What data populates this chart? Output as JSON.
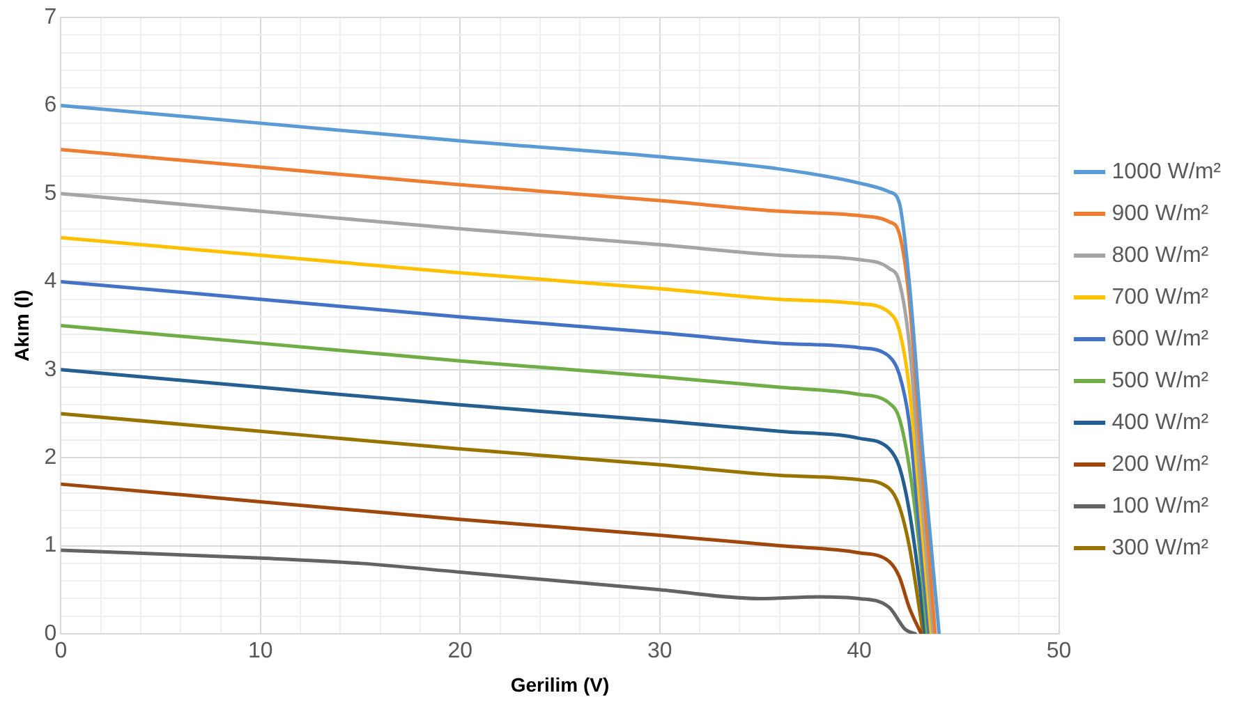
{
  "chart_data": {
    "type": "line",
    "xlabel": "Gerilim (V)",
    "ylabel": "Akım (I)",
    "xlim": [
      0,
      50
    ],
    "ylim": [
      0,
      7
    ],
    "xticks": [
      0,
      {
        "value": 2,
        "label": null
      },
      {
        "value": 4,
        "label": null
      },
      {
        "value": 6,
        "label": null
      },
      {
        "value": 8,
        "label": null
      },
      10,
      {
        "value": 12,
        "label": null
      },
      {
        "value": 14,
        "label": null
      },
      {
        "value": 16,
        "label": null
      },
      {
        "value": 18,
        "label": null
      },
      20,
      {
        "value": 22,
        "label": null
      },
      {
        "value": 24,
        "label": null
      },
      {
        "value": 26,
        "label": null
      },
      {
        "value": 28,
        "label": null
      },
      30,
      {
        "value": 32,
        "label": null
      },
      {
        "value": 34,
        "label": null
      },
      {
        "value": 36,
        "label": null
      },
      {
        "value": 38,
        "label": null
      },
      40,
      {
        "value": 42,
        "label": null
      },
      {
        "value": 44,
        "label": null
      },
      {
        "value": 46,
        "label": null
      },
      {
        "value": 48,
        "label": null
      },
      50
    ],
    "yticks": [
      0,
      {
        "value": 0.2,
        "label": null
      },
      {
        "value": 0.4,
        "label": null
      },
      {
        "value": 0.6,
        "label": null
      },
      {
        "value": 0.8,
        "label": null
      },
      1,
      {
        "value": 1.2,
        "label": null
      },
      {
        "value": 1.4,
        "label": null
      },
      {
        "value": 1.6,
        "label": null
      },
      {
        "value": 1.8,
        "label": null
      },
      2,
      {
        "value": 2.2,
        "label": null
      },
      {
        "value": 2.4,
        "label": null
      },
      {
        "value": 2.6,
        "label": null
      },
      {
        "value": 2.8,
        "label": null
      },
      3,
      {
        "value": 3.2,
        "label": null
      },
      {
        "value": 3.4,
        "label": null
      },
      {
        "value": 3.6,
        "label": null
      },
      {
        "value": 3.8,
        "label": null
      },
      4,
      {
        "value": 4.2,
        "label": null
      },
      {
        "value": 4.4,
        "label": null
      },
      {
        "value": 4.6,
        "label": null
      },
      {
        "value": 4.8,
        "label": null
      },
      5,
      {
        "value": 5.2,
        "label": null
      },
      {
        "value": 5.4,
        "label": null
      },
      {
        "value": 5.6,
        "label": null
      },
      {
        "value": 5.8,
        "label": null
      },
      6,
      {
        "value": 6.2,
        "label": null
      },
      {
        "value": 6.4,
        "label": null
      },
      {
        "value": 6.6,
        "label": null
      },
      {
        "value": 6.8,
        "label": null
      },
      7
    ],
    "grid": true,
    "legend": "right",
    "marker": "none",
    "line_style": "solid",
    "series": [
      {
        "name": "1000 W/m²",
        "color": "#5b9bd5",
        "x": [
          0,
          10,
          20,
          30,
          36,
          40,
          41.5,
          42,
          42.5,
          43.2,
          44
        ],
        "values": [
          6.0,
          5.8,
          5.6,
          5.42,
          5.28,
          5.12,
          5.02,
          4.9,
          4.0,
          2.0,
          0
        ]
      },
      {
        "name": "900 W/m²",
        "color": "#ed7d31",
        "x": [
          0,
          10,
          20,
          30,
          36,
          40,
          41.5,
          42,
          42.5,
          43.1,
          43.8
        ],
        "values": [
          5.5,
          5.3,
          5.1,
          4.92,
          4.8,
          4.75,
          4.68,
          4.55,
          3.8,
          2.0,
          0
        ]
      },
      {
        "name": "800 W/m²",
        "color": "#a5a5a5",
        "x": [
          0,
          10,
          20,
          30,
          36,
          40,
          41.5,
          42,
          42.5,
          43.1,
          43.7
        ],
        "values": [
          5.0,
          4.8,
          4.6,
          4.42,
          4.3,
          4.25,
          4.15,
          4.0,
          3.3,
          1.6,
          0
        ]
      },
      {
        "name": "700 W/m²",
        "color": "#ffc000",
        "x": [
          0,
          10,
          20,
          30,
          36,
          40,
          41.5,
          42,
          42.5,
          43.1,
          43.6
        ],
        "values": [
          4.5,
          4.3,
          4.1,
          3.92,
          3.8,
          3.75,
          3.65,
          3.45,
          2.8,
          1.3,
          0
        ]
      },
      {
        "name": "600 W/m²",
        "color": "#4472c4",
        "x": [
          0,
          10,
          20,
          30,
          36,
          40,
          41.5,
          42,
          42.5,
          43,
          43.5
        ],
        "values": [
          4.0,
          3.8,
          3.6,
          3.42,
          3.3,
          3.25,
          3.15,
          2.95,
          2.4,
          1.2,
          0
        ]
      },
      {
        "name": "500 W/m²",
        "color": "#70ad47",
        "x": [
          0,
          10,
          20,
          30,
          36,
          40,
          41.5,
          42,
          42.5,
          43,
          43.4
        ],
        "values": [
          3.5,
          3.3,
          3.1,
          2.92,
          2.8,
          2.72,
          2.62,
          2.45,
          1.9,
          1.0,
          0
        ]
      },
      {
        "name": "400 W/m²",
        "color": "#255e91",
        "x": [
          0,
          10,
          20,
          30,
          36,
          40,
          41.5,
          42,
          42.5,
          43,
          43.3
        ],
        "values": [
          3.0,
          2.8,
          2.6,
          2.42,
          2.3,
          2.22,
          2.1,
          1.9,
          1.4,
          0.6,
          0
        ]
      },
      {
        "name": "200 W/m²",
        "color": "#9e480e",
        "x": [
          0,
          10,
          20,
          30,
          36,
          40,
          41.5,
          42,
          42.5,
          43.1
        ],
        "values": [
          1.7,
          1.5,
          1.3,
          1.12,
          1.0,
          0.92,
          0.82,
          0.65,
          0.3,
          0
        ]
      },
      {
        "name": "100 W/m²",
        "color": "#636363",
        "x": [
          0,
          10,
          15,
          20,
          30,
          35,
          38,
          40,
          41.5,
          42.3,
          42.8
        ],
        "values": [
          0.95,
          0.86,
          0.8,
          0.7,
          0.5,
          0.4,
          0.42,
          0.4,
          0.3,
          0.05,
          0
        ]
      },
      {
        "name": "300 W/m²",
        "color": "#997300",
        "x": [
          0,
          10,
          20,
          30,
          36,
          40,
          41.5,
          42,
          42.5,
          43.2
        ],
        "values": [
          2.5,
          2.3,
          2.1,
          1.92,
          1.8,
          1.75,
          1.65,
          1.45,
          1.0,
          0
        ]
      }
    ]
  }
}
